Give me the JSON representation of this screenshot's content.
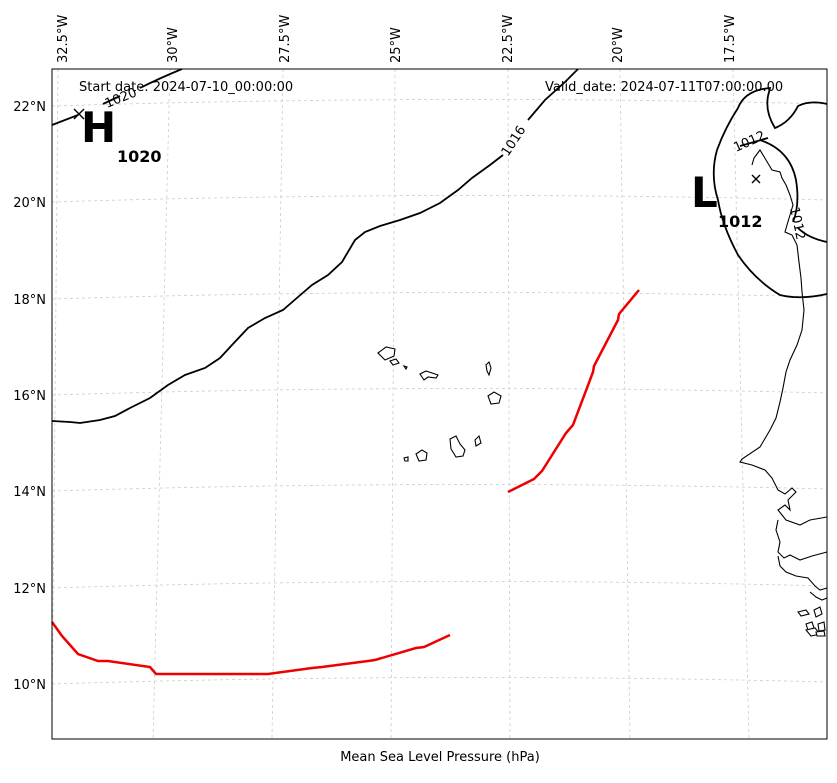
{
  "header": {
    "start_date": "Start date: 2024-07-10_00:00:00",
    "valid_date": "Valid_date: 2024-07-11T07:00:00.00"
  },
  "footer": {
    "xlabel": "Mean Sea Level Pressure (hPa)"
  },
  "axes": {
    "lon_labels": [
      "32.5°W",
      "30°W",
      "27.5°W",
      "25°W",
      "22.5°W",
      "20°W",
      "17.5°W"
    ],
    "lat_labels": [
      "22°N",
      "20°N",
      "18°N",
      "16°N",
      "14°N",
      "12°N",
      "10°N"
    ]
  },
  "pressure_centers": {
    "high": {
      "letter": "H",
      "value": "1020"
    },
    "low": {
      "letter": "L",
      "value": "1012"
    }
  },
  "contour_labels": {
    "c1020": "1020",
    "c1016": "1016",
    "c1012a": "1012",
    "c1012b": "1012"
  },
  "colors": {
    "front": "#ee0000",
    "contour": "#000000",
    "grid": "#cccccc"
  }
}
